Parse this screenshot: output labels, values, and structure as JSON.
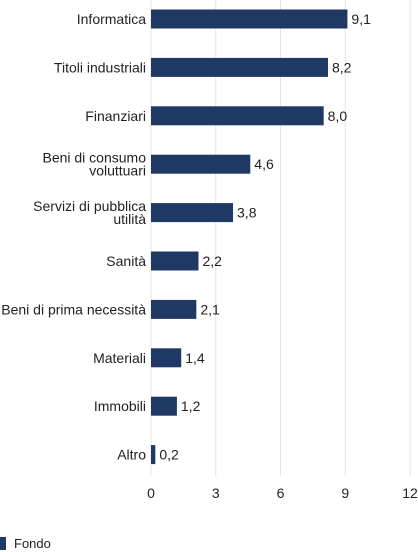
{
  "chart_data": {
    "type": "bar",
    "orientation": "horizontal",
    "categories": [
      [
        "Informatica"
      ],
      [
        "Titoli industriali"
      ],
      [
        "Finanziari"
      ],
      [
        "Beni di consumo",
        "voluttuari"
      ],
      [
        "Servizi di pubblica",
        "utilità"
      ],
      [
        "Sanità"
      ],
      [
        "Beni di prima necessità"
      ],
      [
        "Materiali"
      ],
      [
        "Immobili"
      ],
      [
        "Altro"
      ]
    ],
    "values": [
      9.1,
      8.2,
      8.0,
      4.6,
      3.8,
      2.2,
      2.1,
      1.4,
      1.2,
      0.2
    ],
    "value_labels": [
      "9,1",
      "8,2",
      "8,0",
      "4,6",
      "3,8",
      "2,2",
      "2,1",
      "1,4",
      "1,2",
      "0,2"
    ],
    "xlim": [
      0,
      12
    ],
    "xticks": [
      0,
      3,
      6,
      9,
      12
    ],
    "series": [
      {
        "name": "Fondo",
        "color": "#1f3864"
      }
    ],
    "grid": "vertical",
    "legend_position": "bottom-left"
  }
}
